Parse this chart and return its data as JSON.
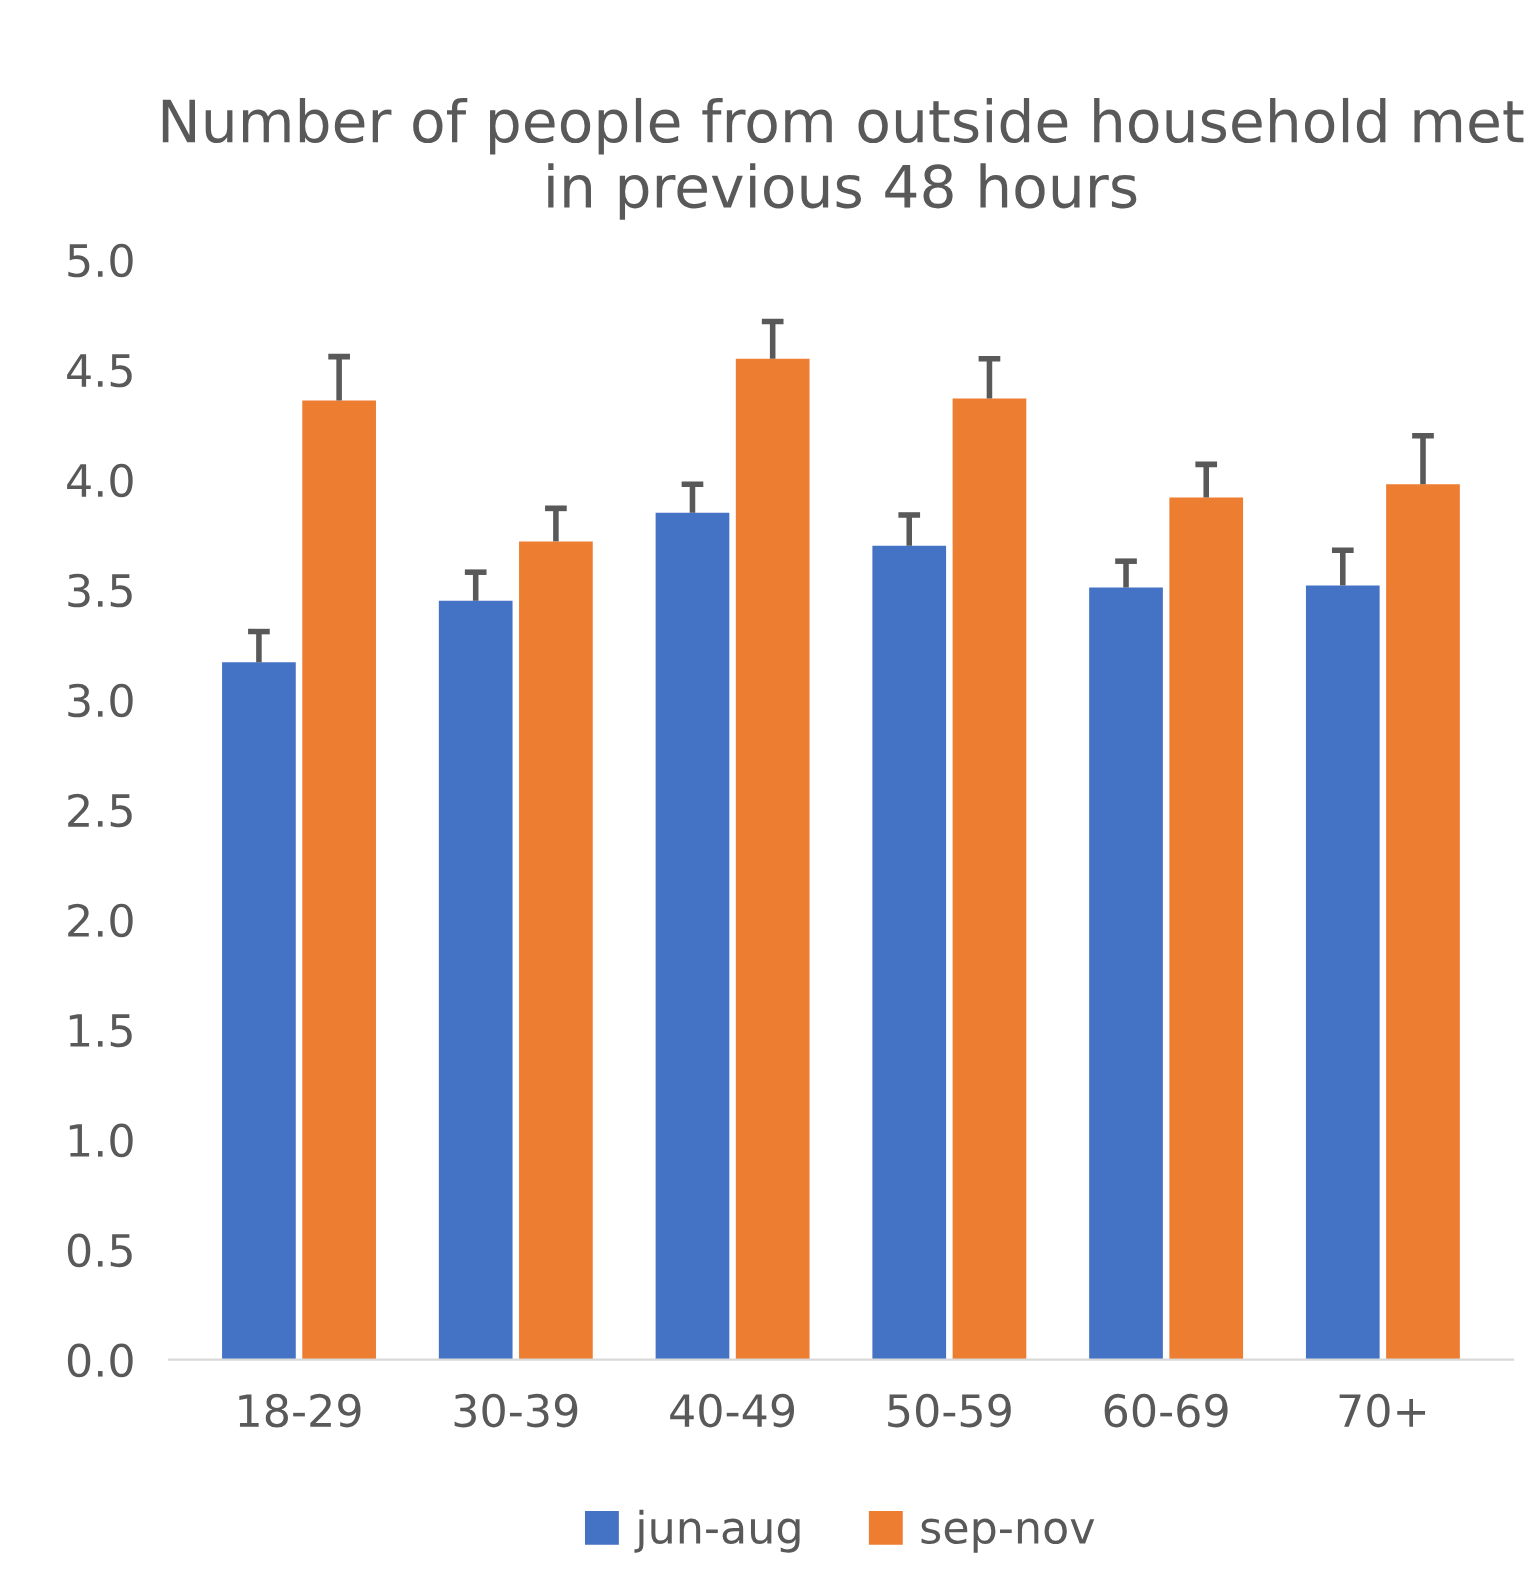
{
  "chart_data": {
    "type": "bar",
    "title": "Number of people from outside household met in previous 48 hours",
    "categories": [
      "18-29",
      "30-39",
      "40-49",
      "50-59",
      "60-69",
      "70+"
    ],
    "series": [
      {
        "name": "jun-aug",
        "color": "#4472c4",
        "values": [
          3.17,
          3.45,
          3.85,
          3.7,
          3.51,
          3.52
        ],
        "errors": [
          [
            3.17,
            3.31
          ],
          [
            3.45,
            3.58
          ],
          [
            3.85,
            3.98
          ],
          [
            3.7,
            3.84
          ],
          [
            3.51,
            3.63
          ],
          [
            3.52,
            3.68
          ]
        ]
      },
      {
        "name": "sep-nov",
        "color": "#ed7d31",
        "values": [
          4.36,
          3.72,
          4.55,
          4.37,
          3.92,
          3.98
        ],
        "errors": [
          [
            4.36,
            4.56
          ],
          [
            3.72,
            3.87
          ],
          [
            4.55,
            4.72
          ],
          [
            4.37,
            4.55
          ],
          [
            3.92,
            4.07
          ],
          [
            3.98,
            4.2
          ]
        ]
      }
    ],
    "ylim": [
      0,
      5
    ],
    "yticks": [
      {
        "value": 0,
        "label": "0.0"
      },
      {
        "value": 0.5,
        "label": "0.5"
      },
      {
        "value": 1,
        "label": "1.0"
      },
      {
        "value": 1.5,
        "label": "1.5"
      },
      {
        "value": 2,
        "label": "2.0"
      },
      {
        "value": 2.5,
        "label": "2.5"
      },
      {
        "value": 3,
        "label": "3.0"
      },
      {
        "value": 3.5,
        "label": "3.5"
      },
      {
        "value": 4,
        "label": "4.0"
      },
      {
        "value": 4.5,
        "label": "4.5"
      },
      {
        "value": 5,
        "label": "5.0"
      }
    ],
    "grid": false,
    "legend": "bottom"
  }
}
